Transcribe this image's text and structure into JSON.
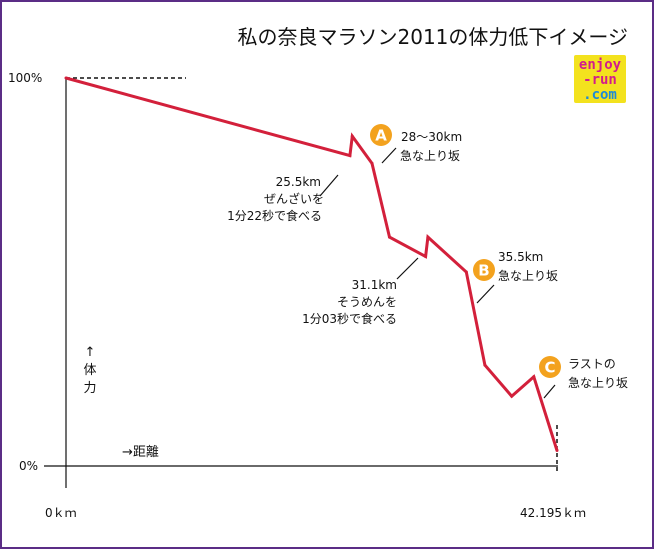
{
  "colors": {
    "line": "#d3203b",
    "badge": "#f3a21e",
    "axis": "#111111",
    "logo_bg": "#f3e21e",
    "logo_text_a": "#d21c8c",
    "logo_text_b": "#1f8ad6"
  },
  "chart_data": {
    "type": "line",
    "title": "私の奈良マラソン2011の体力低下イメージ",
    "xlabel": "→距離",
    "ylabel": "↑体力",
    "x_ticks": [
      "0ｋｍ",
      "42.195ｋｍ"
    ],
    "y_ticks": [
      "100%",
      "0%"
    ],
    "xlim": [
      0,
      42.195
    ],
    "ylim": [
      0,
      100
    ],
    "series": [
      {
        "values": [
          {
            "x": 0,
            "y": 100
          },
          {
            "x": 24.4,
            "y": 80
          },
          {
            "x": 24.6,
            "y": 85
          },
          {
            "x": 26.3,
            "y": 78
          },
          {
            "x": 27.8,
            "y": 59
          },
          {
            "x": 30.9,
            "y": 54
          },
          {
            "x": 31.1,
            "y": 59
          },
          {
            "x": 34.4,
            "y": 50
          },
          {
            "x": 36.0,
            "y": 26
          },
          {
            "x": 38.3,
            "y": 18
          },
          {
            "x": 40.2,
            "y": 23
          },
          {
            "x": 42.195,
            "y": 4
          }
        ]
      }
    ],
    "annotations": [
      {
        "badge": "A",
        "text": [
          "28〜30km",
          "急な上り坂"
        ]
      },
      {
        "badge": "B",
        "text": [
          "35.5km",
          "急な上り坂"
        ]
      },
      {
        "badge": "C",
        "text": [
          "ラストの",
          "急な上り坂"
        ]
      },
      {
        "text": [
          "25.5km",
          "ぜんざいを",
          "1分22秒で食べる"
        ]
      },
      {
        "text": [
          "31.1km",
          "そうめんを",
          "1分03秒で食べる"
        ]
      }
    ]
  },
  "logo": {
    "lines": [
      "enjoy",
      "-run",
      ".com"
    ]
  }
}
